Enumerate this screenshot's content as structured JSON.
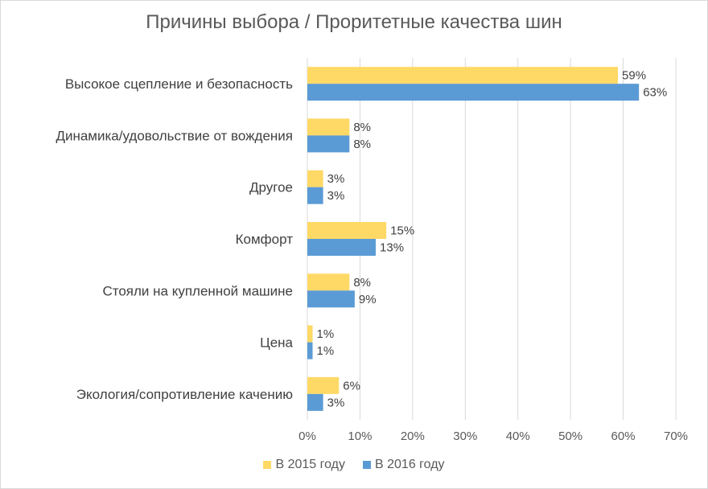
{
  "chart_data": {
    "type": "bar",
    "orientation": "horizontal",
    "title": "Причины выбора / Проритетные качества шин",
    "categories": [
      "Высокое сцепление и безопасность",
      "Динамика/удовольствие от вождения",
      "Другое",
      "Комфорт",
      "Стояли на купленной машине",
      "Цена",
      "Экология/сопротивление качению"
    ],
    "series": [
      {
        "name": "В 2015 году",
        "color": "#ffd966",
        "values": [
          59,
          8,
          3,
          15,
          8,
          1,
          6
        ],
        "labels": [
          "59%",
          "8%",
          "3%",
          "15%",
          "8%",
          "1%",
          "6%"
        ]
      },
      {
        "name": "В 2016 году",
        "color": "#5b9bd5",
        "values": [
          63,
          8,
          3,
          13,
          9,
          1,
          3
        ],
        "labels": [
          "63%",
          "8%",
          "3%",
          "13%",
          "9%",
          "1%",
          "3%"
        ]
      }
    ],
    "xlim": [
      0,
      70
    ],
    "xticks": [
      "0%",
      "10%",
      "20%",
      "30%",
      "40%",
      "50%",
      "60%",
      "70%"
    ],
    "xlabel": "",
    "ylabel": "",
    "grid": true,
    "legend_position": "bottom"
  }
}
